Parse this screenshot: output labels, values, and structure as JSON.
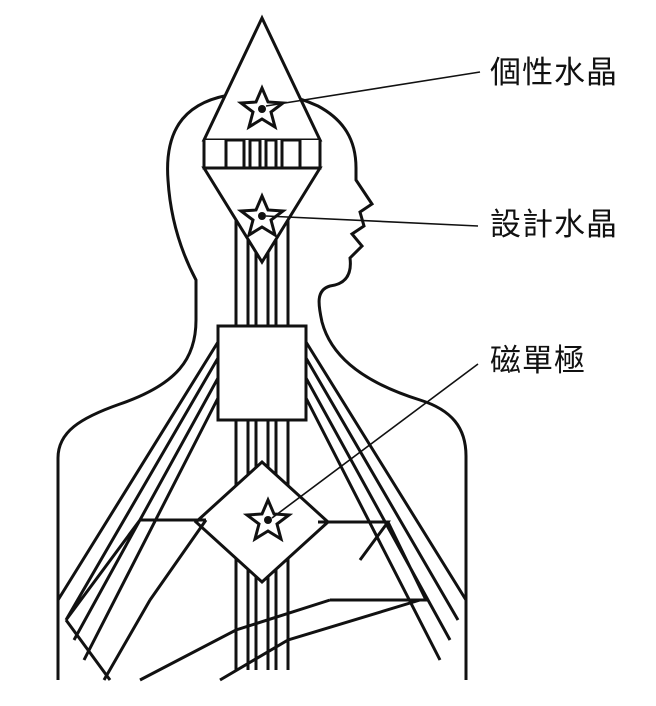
{
  "labels": {
    "personality_crystal": "個性水晶",
    "design_crystal": "設計水晶",
    "magnetic_monopole": "磁單極"
  },
  "colors": {
    "ink": "#111111",
    "paper": "#ffffff"
  }
}
